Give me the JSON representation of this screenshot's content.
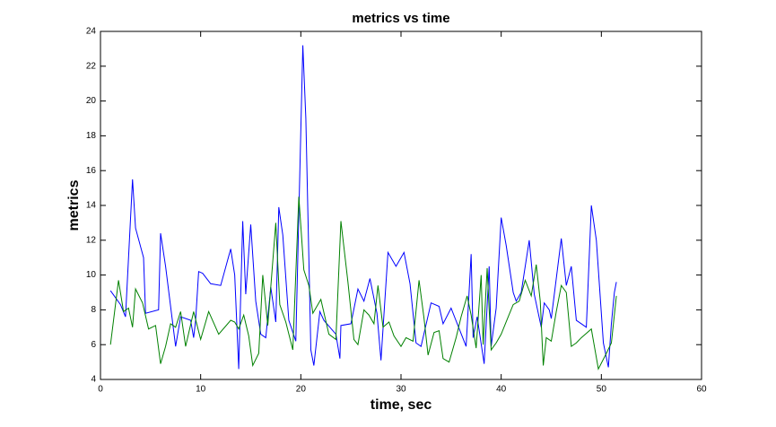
{
  "chart_data": {
    "type": "line",
    "title": "metrics vs time",
    "x_label": "time, sec",
    "y_label": "metrics",
    "xlim": [
      0,
      60
    ],
    "ylim": [
      4,
      24
    ],
    "xticks": [
      0,
      10,
      20,
      30,
      40,
      50,
      60
    ],
    "yticks": [
      4,
      6,
      8,
      10,
      12,
      14,
      16,
      18,
      20,
      22,
      24
    ],
    "grid": false,
    "series": [
      {
        "color": "#0000ff",
        "x": [
          1,
          2,
          2.5,
          3.2,
          3.5,
          4.3,
          4.5,
          5.8,
          6.0,
          6.5,
          7.5,
          8,
          9,
          9.3,
          9.5,
          9.8,
          10.2,
          11,
          12,
          13,
          13.4,
          13.8,
          14.2,
          14.5,
          15,
          15.5,
          16,
          16.5,
          17,
          17.5,
          17.8,
          18.2,
          18.8,
          19.5,
          20.2,
          20.5,
          21,
          21.3,
          21.9,
          22.3,
          23.5,
          23.9,
          24,
          25,
          25.7,
          26.3,
          26.9,
          27.6,
          28,
          28.7,
          29.5,
          30.3,
          30.9,
          31.5,
          32,
          33,
          33.8,
          34.2,
          35,
          36.5,
          37,
          37.2,
          37.6,
          38.3,
          38.8,
          39,
          39.5,
          40,
          40.5,
          41.2,
          41.5,
          42,
          42.8,
          43.3,
          44,
          44.3,
          44.8,
          45,
          46,
          46.5,
          47,
          47.5,
          48.5,
          49,
          49.5,
          50.2,
          50.7,
          51,
          51.3,
          51.5
        ],
        "values": [
          9.1,
          8.3,
          7.6,
          15.5,
          12.7,
          11,
          7.8,
          8.0,
          12.4,
          10.5,
          5.9,
          7.6,
          7.4,
          6.4,
          7.4,
          10.2,
          10.1,
          9.5,
          9.4,
          11.5,
          10,
          4.6,
          13.1,
          8.9,
          12.9,
          8.5,
          6.6,
          6.4,
          9.3,
          7.3,
          13.9,
          12.3,
          7.4,
          6.2,
          23.2,
          19,
          5.7,
          4.8,
          7.9,
          7.4,
          6.6,
          5.2,
          7.1,
          7.2,
          9.2,
          8.5,
          9.8,
          7.8,
          5.1,
          11.3,
          10.5,
          11.3,
          9.5,
          6.1,
          5.9,
          8.4,
          8.2,
          7.2,
          8.1,
          5.9,
          11.2,
          6.4,
          7.6,
          4.9,
          10.5,
          5.9,
          8.1,
          13.3,
          11.7,
          9,
          8.5,
          9,
          12.0,
          8.9,
          7.0,
          8.4,
          8.0,
          7.5,
          12.1,
          9.4,
          10.5,
          7.4,
          7.0,
          14,
          12.0,
          6.1,
          4.7,
          7.2,
          9.0,
          9.6
        ]
      },
      {
        "color": "#008000",
        "x": [
          1,
          1.8,
          2.3,
          2.8,
          3.2,
          3.5,
          4.2,
          4.8,
          5.5,
          6,
          6.5,
          7,
          7.5,
          8,
          8.5,
          9.3,
          10,
          10.8,
          11.8,
          13,
          13.4,
          13.8,
          14.3,
          14.8,
          15.2,
          15.8,
          16.2,
          16.7,
          17.5,
          17.9,
          18.5,
          19.2,
          19.8,
          20.3,
          20.8,
          21.2,
          22,
          22.8,
          23.5,
          24,
          24.7,
          25.3,
          25.7,
          26.3,
          26.8,
          27.3,
          27.7,
          28.2,
          28.8,
          29.3,
          30,
          30.5,
          31.2,
          31.8,
          32.3,
          32.7,
          33.3,
          33.8,
          34.2,
          34.8,
          35.5,
          36,
          36.6,
          37,
          37.5,
          38,
          38.2,
          38.6,
          39,
          39.5,
          40,
          40.7,
          41.2,
          41.8,
          42.4,
          43,
          43.5,
          43.9,
          44.2,
          44.5,
          45,
          45.5,
          46,
          46.5,
          47,
          47.5,
          48,
          49,
          49.7,
          50.5,
          51,
          51.5
        ],
        "values": [
          6.0,
          9.7,
          7.9,
          8.1,
          7.0,
          9.2,
          8.4,
          6.9,
          7.1,
          4.9,
          5.9,
          7.2,
          7.0,
          7.9,
          5.9,
          7.9,
          6.3,
          7.9,
          6.6,
          7.4,
          7.3,
          6.9,
          7.7,
          6.5,
          4.8,
          5.5,
          10,
          7.1,
          13,
          8.3,
          7.3,
          5.7,
          14.5,
          10.3,
          9.4,
          7.8,
          8.6,
          6.6,
          6.3,
          13.1,
          9.6,
          6.3,
          6.0,
          8.0,
          7.7,
          7.2,
          9.4,
          7.0,
          7.3,
          6.5,
          5.9,
          6.4,
          6.2,
          9.7,
          7.5,
          5.4,
          6.7,
          6.8,
          5.2,
          5.0,
          6.4,
          7.6,
          8.8,
          7.7,
          5.8,
          10.0,
          6.0,
          10.4,
          5.7,
          6.1,
          6.6,
          7.6,
          8.3,
          8.5,
          9.7,
          8.8,
          10.6,
          8.5,
          4.8,
          6.4,
          6.2,
          7.9,
          9.4,
          9.0,
          5.9,
          6.1,
          6.4,
          6.9,
          4.6,
          5.5,
          6.1,
          8.8
        ]
      }
    ]
  }
}
